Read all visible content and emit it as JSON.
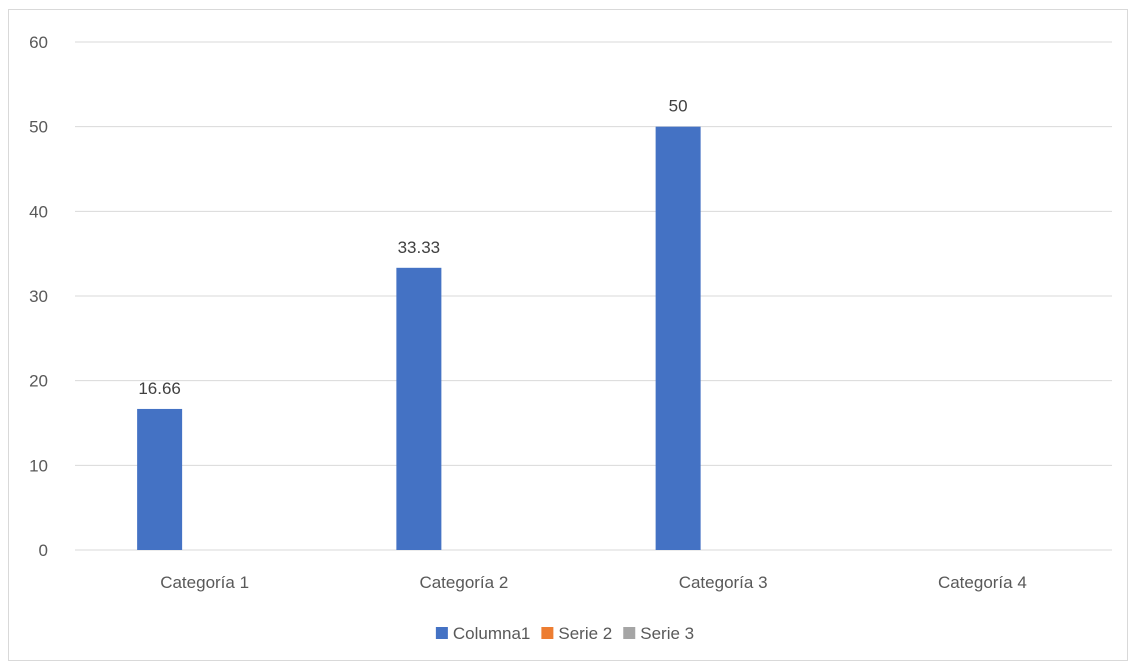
{
  "chart_data": {
    "type": "bar",
    "title": "",
    "xlabel": "",
    "ylabel": "",
    "categories": [
      "Categoría 1",
      "Categoría 2",
      "Categoría 3",
      "Categoría 4"
    ],
    "series": [
      {
        "name": "Columna1",
        "values": [
          16.66,
          33.33,
          50,
          null
        ],
        "color": "#4472C4",
        "data_labels": [
          "16.66",
          "33.33",
          "50",
          ""
        ]
      },
      {
        "name": "Serie 2",
        "values": [
          null,
          null,
          null,
          null
        ],
        "color": "#ED7D31"
      },
      {
        "name": "Serie 3",
        "values": [
          null,
          null,
          null,
          null
        ],
        "color": "#A5A5A5"
      }
    ],
    "ylim": [
      0,
      60
    ],
    "yticks": [
      0,
      10,
      20,
      30,
      40,
      50,
      60
    ],
    "ytick_labels": [
      "0",
      "10",
      "20",
      "30",
      "40",
      "50",
      "60"
    ],
    "grid": true,
    "gridline_color": "#d9d9d9",
    "legend_position": "bottom"
  }
}
